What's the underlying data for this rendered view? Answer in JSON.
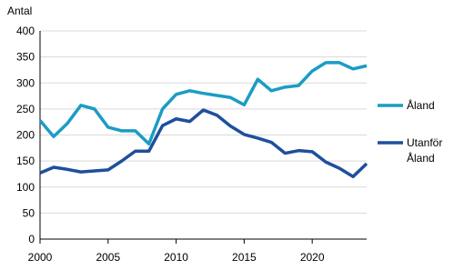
{
  "chart_data": {
    "type": "line",
    "y_label": "Antal",
    "x": [
      2000,
      2001,
      2002,
      2003,
      2004,
      2005,
      2006,
      2007,
      2008,
      2009,
      2010,
      2011,
      2012,
      2013,
      2014,
      2015,
      2016,
      2017,
      2018,
      2019,
      2020,
      2021,
      2022,
      2023,
      2024
    ],
    "series": [
      {
        "name": "Åland",
        "color": "#1b9cc4",
        "values": [
          228,
          197,
          222,
          257,
          250,
          215,
          208,
          208,
          183,
          250,
          278,
          285,
          280,
          276,
          272,
          258,
          307,
          285,
          292,
          295,
          323,
          339,
          339,
          327,
          333
        ]
      },
      {
        "name": "Utanför Åland",
        "color": "#1f4f9c",
        "values": [
          127,
          138,
          134,
          129,
          131,
          133,
          150,
          169,
          169,
          218,
          231,
          226,
          248,
          238,
          217,
          201,
          194,
          186,
          165,
          170,
          168,
          148,
          136,
          120,
          145
        ]
      }
    ],
    "xlim": [
      2000,
      2024
    ],
    "xticks": [
      2000,
      2005,
      2010,
      2015,
      2020
    ],
    "ylim": [
      0,
      400
    ],
    "yticks": [
      0,
      50,
      100,
      150,
      200,
      250,
      300,
      350,
      400
    ],
    "grid": true,
    "legend": "right"
  }
}
